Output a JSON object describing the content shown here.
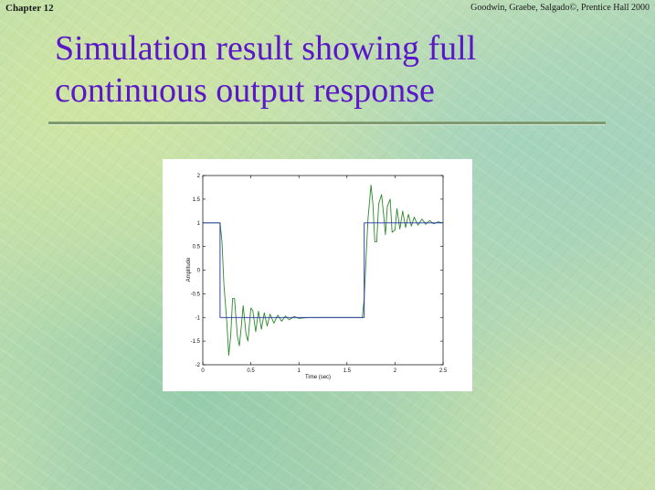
{
  "header": {
    "chapter": "Chapter 12",
    "credit": "Goodwin, Graebe, Salgado©, Prentice Hall 2000"
  },
  "slide": {
    "title_line1": "Simulation result showing full",
    "title_line2": "continuous output response",
    "title_color": "#5a17c9",
    "rule_color": "#7f9a6e"
  },
  "chart_data": {
    "type": "line",
    "title": "",
    "xlabel": "Time (sec)",
    "ylabel": "Amplitude",
    "xlim": [
      0,
      2.5
    ],
    "ylim": [
      -2,
      2
    ],
    "xticks": [
      0,
      0.5,
      1,
      1.5,
      2,
      2.5
    ],
    "xtick_labels": [
      "0",
      "0.5",
      "1",
      "1.5",
      "2",
      "2.5"
    ],
    "yticks": [
      -2,
      -1.5,
      -1,
      -0.5,
      0,
      0.5,
      1,
      1.5,
      2
    ],
    "ytick_labels": [
      "-2",
      "-1.5",
      "-1",
      "-0.5",
      "0",
      "0.5",
      "1",
      "1.5",
      "2"
    ],
    "grid": false,
    "series": [
      {
        "color": "#1f2fa6",
        "x": [
          0,
          0.18,
          0.18,
          1.68,
          1.68,
          2.5
        ],
        "y": [
          1,
          1,
          -1,
          -1,
          1,
          1
        ]
      },
      {
        "color": "#2a8a2a",
        "x": [
          0,
          0.15,
          0.18,
          0.2,
          0.22,
          0.25,
          0.27,
          0.29,
          0.31,
          0.33,
          0.36,
          0.38,
          0.4,
          0.42,
          0.45,
          0.47,
          0.5,
          0.52,
          0.55,
          0.58,
          0.61,
          0.64,
          0.67,
          0.7,
          0.74,
          0.78,
          0.82,
          0.86,
          0.9,
          0.95,
          1.0,
          1.1,
          1.2,
          1.3,
          1.4,
          1.5,
          1.6,
          1.66,
          1.68,
          1.7,
          1.72,
          1.75,
          1.77,
          1.79,
          1.81,
          1.83,
          1.86,
          1.88,
          1.9,
          1.92,
          1.95,
          1.97,
          2.0,
          2.02,
          2.05,
          2.08,
          2.11,
          2.14,
          2.17,
          2.2,
          2.24,
          2.28,
          2.32,
          2.36,
          2.4,
          2.45,
          2.5
        ],
        "y": [
          1,
          1,
          1,
          0.6,
          -0.3,
          -1.1,
          -1.8,
          -1.4,
          -0.6,
          -0.6,
          -1.4,
          -1.6,
          -1.2,
          -0.75,
          -1.35,
          -1.5,
          -0.8,
          -0.85,
          -1.3,
          -0.87,
          -1.25,
          -0.9,
          -1.18,
          -0.93,
          -1.12,
          -0.95,
          -1.08,
          -0.97,
          -1.05,
          -0.98,
          -1.02,
          -1.0,
          -1.0,
          -1.0,
          -1.0,
          -1.0,
          -1.0,
          -1.0,
          -0.6,
          0.3,
          1.1,
          1.8,
          1.4,
          0.6,
          0.6,
          1.4,
          1.6,
          1.2,
          0.75,
          1.35,
          1.5,
          0.8,
          0.85,
          1.3,
          0.87,
          1.25,
          0.9,
          1.18,
          0.93,
          1.12,
          0.95,
          1.08,
          0.97,
          1.05,
          0.98,
          1.02,
          1.0
        ]
      }
    ]
  }
}
